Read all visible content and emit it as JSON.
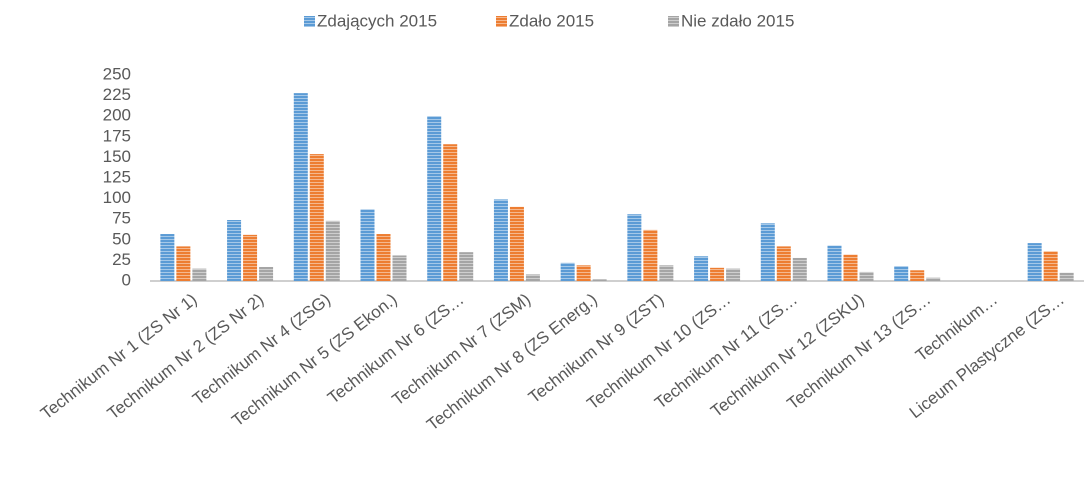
{
  "chart_data": {
    "type": "bar",
    "categories": [
      "Technikum Nr 1 (ZS Nr 1)",
      "Technikum Nr 2 (ZS Nr 2)",
      "Technikum Nr 4 (ZSG)",
      "Technikum Nr 5 (ZS Ekon.)",
      "Technikum Nr 6 (ZS…",
      "Technikum Nr 7 (ZSM)",
      "Technikum Nr 8 (ZS Energ.)",
      "Technikum Nr 9 (ZST)",
      "Technikum Nr 10 (ZS…",
      "Technikum Nr 11 (ZS…",
      "Technikum Nr 12 (ZSKU)",
      "Technikum Nr 13 (ZS…",
      "Technikum…",
      "Liceum Plastyczne (ZS…"
    ],
    "series": [
      {
        "name": "Zdających 2015",
        "color": "#5b9bd5",
        "values": [
          57,
          74,
          228,
          87,
          200,
          99,
          22,
          81,
          30,
          70,
          43,
          18,
          0,
          46
        ]
      },
      {
        "name": "Zdało 2015",
        "color": "#ed7d31",
        "values": [
          42,
          56,
          154,
          57,
          166,
          90,
          19,
          62,
          16,
          42,
          32,
          13,
          0,
          36
        ]
      },
      {
        "name": "Nie zdało 2015",
        "color": "#a5a5a5",
        "values": [
          15,
          17,
          73,
          31,
          35,
          8,
          2,
          19,
          15,
          28,
          11,
          4,
          0,
          10
        ]
      }
    ],
    "ylim": [
      0,
      250
    ],
    "yticks": [
      0,
      25,
      50,
      75,
      100,
      125,
      150,
      175,
      200,
      225,
      250
    ],
    "legend": "top"
  }
}
